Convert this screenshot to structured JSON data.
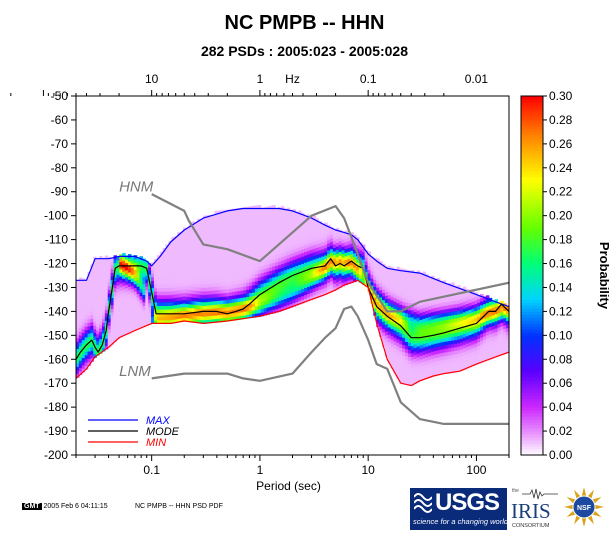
{
  "header": {
    "title": "NC PMPB -- HHN",
    "subtitle": "282 PSDs : 2005:023 - 2005:028"
  },
  "footer": {
    "gmt_label": "GMT",
    "timestamp": "2005 Feb  6 04:11:15",
    "plot_name": "NC PMPB -- HHN PSD PDF",
    "usgs_name": "USGS",
    "usgs_tagline": "science for a changing world",
    "iris_small": "the",
    "iris_name": "IRIS",
    "iris_consortium": "CONSORTIUM",
    "nsf_name": "NSF"
  },
  "chart_data": {
    "type": "heatmap",
    "title": "NC PMPB -- HHN",
    "subtitle": "282 PSDs : 2005:023 - 2005:028",
    "xlabel": "Period (sec)",
    "x_scale": "log",
    "xlim": [
      0.02,
      200
    ],
    "x_ticks": [
      0.1,
      1,
      10,
      100
    ],
    "x_tick_labels": [
      "0.1",
      "1",
      "10",
      "100"
    ],
    "top_axis_label": "Hz",
    "top_ticks": [
      10,
      1,
      0.1,
      0.01
    ],
    "top_tick_labels": [
      "10",
      "1",
      "0.1",
      "0.01"
    ],
    "ylim": [
      -200,
      -50
    ],
    "y_ticks": [
      -200,
      -190,
      -180,
      -170,
      -160,
      -150,
      -140,
      -130,
      -120,
      -110,
      -100,
      -90,
      -80,
      -70,
      -60,
      -50
    ],
    "y_tick_labels": [
      "-200",
      "-190",
      "-180",
      "-170",
      "-160",
      "-150",
      "-140",
      "-130",
      "-120",
      "-110",
      "-100",
      "-90",
      "-80",
      "-70",
      "-60",
      "-50"
    ],
    "colorbar": {
      "label": "Probability",
      "range": [
        0,
        0.3
      ],
      "ticks": [
        0,
        0.02,
        0.04,
        0.06,
        0.08,
        0.1,
        0.12,
        0.14,
        0.16,
        0.18,
        0.2,
        0.22,
        0.24,
        0.26,
        0.28,
        0.3
      ],
      "tick_labels": [
        "0.00",
        "0.02",
        "0.04",
        "0.06",
        "0.08",
        "0.10",
        "0.12",
        "0.14",
        "0.16",
        "0.18",
        "0.20",
        "0.22",
        "0.24",
        "0.26",
        "0.28",
        "0.30"
      ]
    },
    "legend": {
      "placement": "bottom-left",
      "entries": [
        {
          "name": "MAX",
          "color": "#0000ff"
        },
        {
          "name": "MODE",
          "color": "#000000"
        },
        {
          "name": "MIN",
          "color": "#ff0000"
        }
      ]
    },
    "series": [
      {
        "name": "MAX",
        "color": "#0000ff",
        "x": [
          0.02,
          0.025,
          0.03,
          0.04,
          0.05,
          0.07,
          0.09,
          0.1,
          0.12,
          0.15,
          0.2,
          0.3,
          0.5,
          0.7,
          1,
          1.5,
          2,
          3,
          4,
          5,
          6,
          7,
          8,
          10,
          12,
          15,
          20,
          30,
          50,
          100,
          150,
          200
        ],
        "y": [
          -127,
          -127,
          -118,
          -118,
          -117,
          -117,
          -119,
          -121,
          -117,
          -111,
          -106,
          -101,
          -98,
          -97,
          -97,
          -97,
          -98,
          -101,
          -104,
          -106,
          -107,
          -108,
          -110,
          -116,
          -119,
          -122,
          -123,
          -124,
          -128,
          -133,
          -136,
          -138
        ]
      },
      {
        "name": "MODE",
        "color": "#000000",
        "x": [
          0.02,
          0.022,
          0.025,
          0.028,
          0.03,
          0.032,
          0.035,
          0.038,
          0.04,
          0.043,
          0.046,
          0.05,
          0.055,
          0.06,
          0.07,
          0.08,
          0.09,
          0.1,
          0.11,
          0.12,
          0.13,
          0.15,
          0.2,
          0.3,
          0.4,
          0.5,
          0.6,
          0.7,
          0.8,
          1,
          1.5,
          2,
          3,
          4,
          4.5,
          5,
          5.5,
          6,
          7,
          8,
          9,
          10,
          12,
          15,
          20,
          25,
          30,
          40,
          50,
          70,
          100,
          130,
          150,
          170,
          200
        ],
        "y": [
          -160,
          -157,
          -154,
          -152,
          -155,
          -157,
          -154,
          -148,
          -140,
          -131,
          -122,
          -121,
          -121,
          -121,
          -121,
          -121,
          -122,
          -132,
          -141,
          -141,
          -141,
          -141,
          -141,
          -140,
          -140,
          -141,
          -140,
          -139,
          -137,
          -133,
          -128,
          -125,
          -122,
          -121,
          -118,
          -121,
          -120,
          -121,
          -119,
          -121,
          -122,
          -130,
          -138,
          -142,
          -146,
          -151,
          -151,
          -150,
          -149,
          -147,
          -145,
          -140,
          -140,
          -137,
          -140
        ]
      },
      {
        "name": "MIN",
        "color": "#ff0000",
        "x": [
          0.02,
          0.025,
          0.03,
          0.04,
          0.05,
          0.07,
          0.1,
          0.15,
          0.2,
          0.3,
          0.5,
          1,
          1.5,
          2,
          3,
          4,
          5,
          6,
          7,
          8,
          10,
          12,
          15,
          20,
          25,
          30,
          40,
          50,
          70,
          100,
          150,
          200
        ],
        "y": [
          -168,
          -164,
          -159,
          -155,
          -151,
          -148,
          -145,
          -145,
          -144,
          -145,
          -144,
          -142,
          -140,
          -138,
          -135,
          -133,
          -131,
          -129,
          -128,
          -127,
          -130,
          -145,
          -160,
          -170,
          -171,
          -169,
          -167,
          -166,
          -165,
          -162,
          -159,
          -157
        ]
      },
      {
        "name": "HNM",
        "color": "#808080",
        "x": [
          0.1,
          0.2,
          0.22,
          0.3,
          0.5,
          1,
          3,
          5,
          6,
          7,
          10,
          15,
          20,
          30,
          200
        ],
        "y": [
          -91,
          -98,
          -102,
          -112,
          -114,
          -119,
          -100,
          -96,
          -101,
          -109,
          -128,
          -140,
          -140,
          -136,
          -128
        ]
      },
      {
        "name": "LNM",
        "color": "#808080",
        "x": [
          0.1,
          0.2,
          0.3,
          0.5,
          0.7,
          1,
          2,
          3,
          4,
          5,
          6,
          7,
          8,
          10,
          12,
          15,
          20,
          30,
          50,
          100,
          200
        ],
        "y": [
          -168,
          -166,
          -166,
          -166,
          -168,
          -169,
          -166,
          -157,
          -151,
          -147,
          -139,
          -138,
          -142,
          -152,
          -162,
          -164,
          -178,
          -185,
          -187,
          -187,
          -187
        ]
      }
    ],
    "annotations": [
      {
        "text": "HNM",
        "x": 0.05,
        "y": -90
      },
      {
        "text": "LNM",
        "x": 0.05,
        "y": -167
      }
    ],
    "density_cores": [
      {
        "x": [
          0.05,
          0.07,
          0.09
        ],
        "y": [
          -119,
          -125,
          -133
        ],
        "strength": 0.24
      },
      {
        "x": [
          0.1,
          0.3,
          1,
          2,
          3,
          4,
          5,
          6,
          7,
          8,
          10,
          15,
          30,
          100,
          200
        ],
        "y": [
          -144,
          -141,
          -138,
          -132,
          -127,
          -122,
          -118,
          -118,
          -120,
          -123,
          -132,
          -140,
          -145,
          -142,
          -138
        ],
        "strength": 0.18
      }
    ]
  }
}
